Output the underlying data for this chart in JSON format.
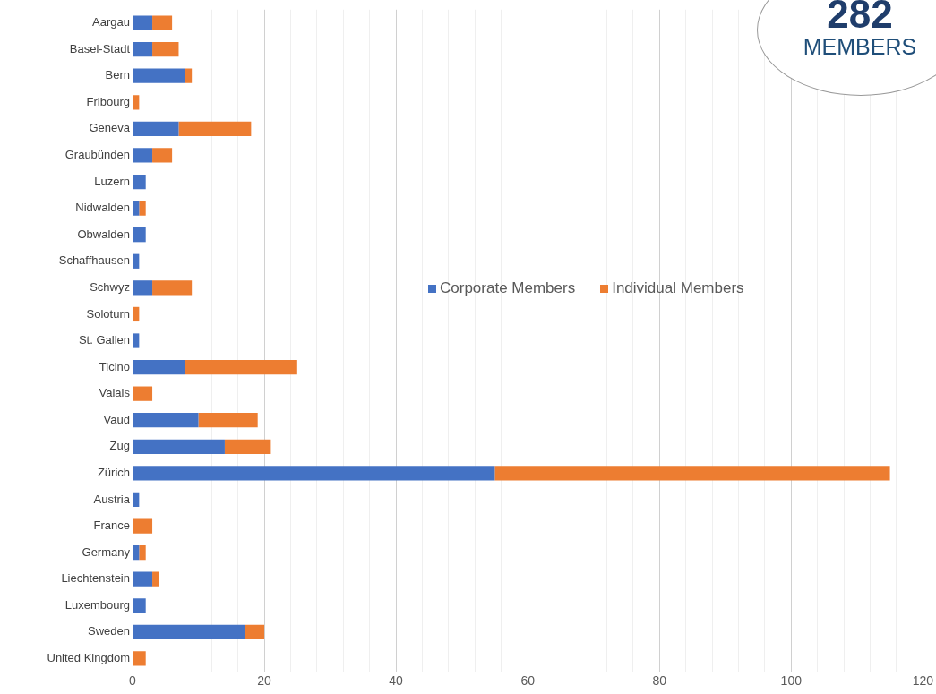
{
  "chart_data": {
    "type": "bar",
    "orientation": "horizontal",
    "stacked": true,
    "categories": [
      "Aargau",
      "Basel-Stadt",
      "Bern",
      "Fribourg",
      "Geneva",
      "Graubünden",
      "Luzern",
      "Nidwalden",
      "Obwalden",
      "Schaffhausen",
      "Schwyz",
      "Soloturn",
      "St. Gallen",
      "Ticino",
      "Valais",
      "Vaud",
      "Zug",
      "Zürich",
      "Austria",
      "France",
      "Germany",
      "Liechtenstein",
      "Luxembourg",
      "Sweden",
      "United Kingdom"
    ],
    "series": [
      {
        "name": "Corporate Members",
        "color": "#4472c4",
        "values": [
          3,
          3,
          8,
          0,
          7,
          3,
          2,
          1,
          2,
          1,
          3,
          0,
          1,
          8,
          0,
          10,
          14,
          55,
          1,
          0,
          1,
          3,
          2,
          17,
          0
        ]
      },
      {
        "name": "Individual Members",
        "color": "#ed7d31",
        "values": [
          3,
          4,
          1,
          1,
          11,
          3,
          0,
          1,
          0,
          0,
          6,
          1,
          0,
          17,
          3,
          9,
          7,
          60,
          0,
          3,
          1,
          1,
          0,
          3,
          2
        ]
      }
    ],
    "xlim": [
      0,
      120
    ],
    "xticks": [
      0,
      {
        "value": 4,
        "label": null
      },
      {
        "value": 8,
        "label": null
      },
      {
        "value": 12,
        "label": null
      },
      {
        "value": 16,
        "label": null
      },
      20,
      {
        "value": 24,
        "label": null
      },
      {
        "value": 28,
        "label": null
      },
      {
        "value": 32,
        "label": null
      },
      {
        "value": 36,
        "label": null
      },
      40,
      {
        "value": 44,
        "label": null
      },
      {
        "value": 48,
        "label": null
      },
      {
        "value": 52,
        "label": null
      },
      {
        "value": 56,
        "label": null
      },
      60,
      {
        "value": 64,
        "label": null
      },
      {
        "value": 68,
        "label": null
      },
      {
        "value": 72,
        "label": null
      },
      {
        "value": 76,
        "label": null
      },
      80,
      {
        "value": 84,
        "label": null
      },
      {
        "value": 88,
        "label": null
      },
      {
        "value": 92,
        "label": null
      },
      {
        "value": 96,
        "label": null
      },
      100,
      {
        "value": 104,
        "label": null
      },
      {
        "value": 108,
        "label": null
      },
      {
        "value": 112,
        "label": null
      },
      {
        "value": 116,
        "label": null
      },
      120
    ],
    "grid": "x",
    "legend": "right",
    "annotations": [
      "282",
      "MEMBERS"
    ]
  }
}
